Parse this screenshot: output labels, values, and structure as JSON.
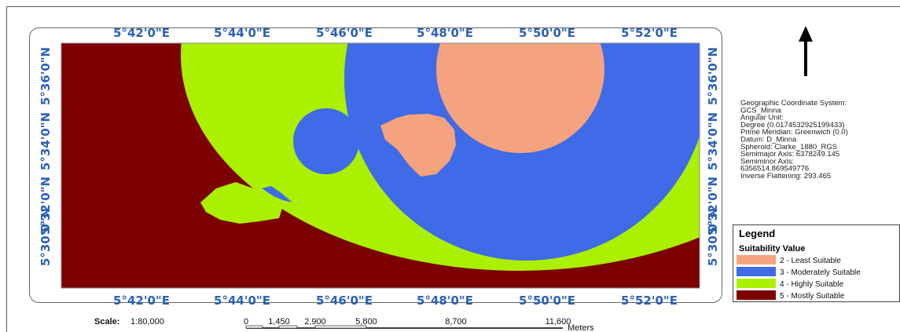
{
  "map": {
    "longitude_labels": [
      "5°42'0\"E",
      "5°44'0\"E",
      "5°46'0\"E",
      "5°48'0\"E",
      "5°50'0\"E",
      "5°52'0\"E"
    ],
    "latitude_labels": [
      "5°36'0\"N",
      "5°34'0\"N",
      "5°32'0\"N",
      "5°30'0\"N"
    ]
  },
  "coordinate_system": [
    "Geographic Coordinate System:",
    " GCS_Minna",
    "Angular Unit:",
    "Degree (0.0174532925199433)",
    "Prime Meridian: Greenwich (0.0)",
    "Datum: D_Minna",
    "Spheroid: Clarke_1880_RGS",
    "Semimajor Axis: 6378249.145",
    "Semiminor Axis:",
    "6356514.869549776",
    "Inverse Flattening: 293.465"
  ],
  "legend": {
    "title": "Legend",
    "subtitle": "Suitability Value",
    "items": [
      {
        "label": "2 - Least Suitable",
        "color": "#f5a27e"
      },
      {
        "label": "3 - Moderately Suitable",
        "color": "#3f6ae8"
      },
      {
        "label": "4 - Highly Suitable",
        "color": "#aaf000"
      },
      {
        "label": "5 - Mostly Suitable",
        "color": "#7d0000"
      }
    ]
  },
  "scale": {
    "label": "Scale:",
    "ratio": "1:80,000",
    "ticks": [
      "0",
      "1,450",
      "2,900",
      "5,800",
      "8,700",
      "11,600"
    ],
    "unit": "Meters"
  }
}
